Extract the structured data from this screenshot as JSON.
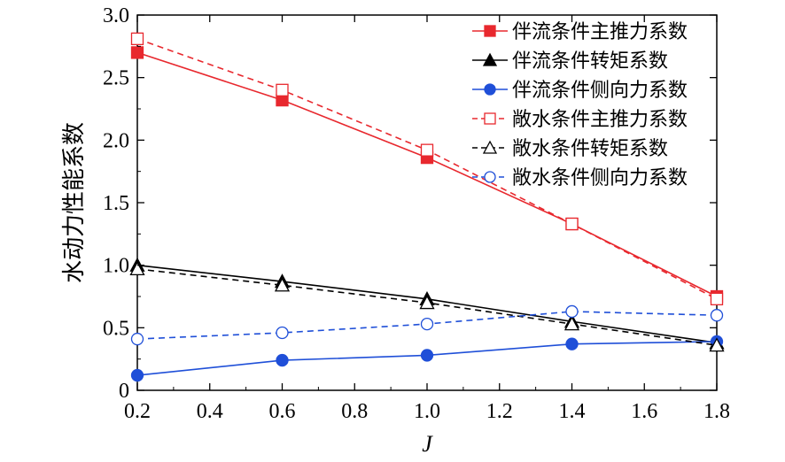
{
  "chart_data": {
    "type": "line",
    "xlabel": "J",
    "ylabel": "水动力性能系数",
    "xlim": [
      0.2,
      1.8
    ],
    "ylim": [
      0,
      3.0
    ],
    "x_ticks": [
      "0.2",
      "0.4",
      "0.6",
      "0.8",
      "1.0",
      "1.2",
      "1.4",
      "1.6",
      "1.8"
    ],
    "y_ticks": [
      "0",
      "0.5",
      "1.0",
      "1.5",
      "2.0",
      "2.5",
      "3.0"
    ],
    "grid": false,
    "legend_position": "top-right",
    "x": [
      0.2,
      0.6,
      1.0,
      1.4,
      1.8
    ],
    "series": [
      {
        "name": "伴流条件主推力系数",
        "color": "#e8282e",
        "dash": "solid",
        "marker": "square",
        "filled": true,
        "values": [
          2.7,
          2.32,
          1.86,
          1.33,
          0.75
        ]
      },
      {
        "name": "伴流条件转矩系数",
        "color": "#000000",
        "dash": "solid",
        "marker": "triangle",
        "filled": true,
        "values": [
          1.0,
          0.87,
          0.73,
          0.55,
          0.38
        ]
      },
      {
        "name": "伴流条件侧向力系数",
        "color": "#1f4fd8",
        "dash": "solid",
        "marker": "circle",
        "filled": true,
        "values": [
          0.12,
          0.24,
          0.28,
          0.37,
          0.39
        ]
      },
      {
        "name": "敞水条件主推力系数",
        "color": "#e8282e",
        "dash": "dashed",
        "marker": "square",
        "filled": false,
        "values": [
          2.81,
          2.4,
          1.92,
          1.33,
          0.73
        ]
      },
      {
        "name": "敞水条件转矩系数",
        "color": "#000000",
        "dash": "dashed",
        "marker": "triangle",
        "filled": false,
        "values": [
          0.97,
          0.84,
          0.7,
          0.53,
          0.36
        ]
      },
      {
        "name": "敞水条件侧向力系数",
        "color": "#1f4fd8",
        "dash": "dashed",
        "marker": "circle",
        "filled": false,
        "values": [
          0.41,
          0.46,
          0.53,
          0.63,
          0.6
        ]
      }
    ]
  }
}
